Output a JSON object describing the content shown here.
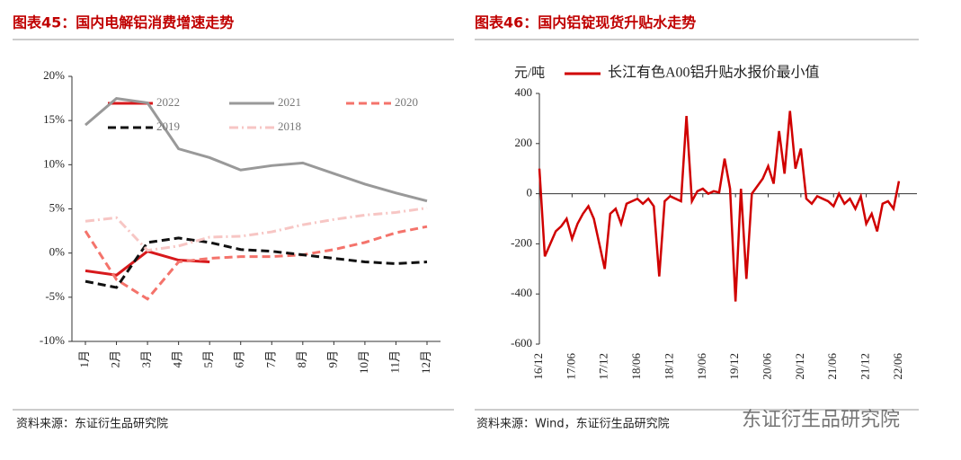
{
  "chart_data": [
    {
      "type": "line",
      "title": "图表45：国内电解铝消费增速走势",
      "source": "资料来源：东证衍生品研究院",
      "categories": [
        "1月",
        "2月",
        "3月",
        "4月",
        "5月",
        "6月",
        "7月",
        "8月",
        "9月",
        "10月",
        "11月",
        "12月"
      ],
      "ylim": [
        -10,
        20
      ],
      "yticks": [
        {
          "value": 20,
          "label": "20%"
        },
        {
          "value": 15,
          "label": "15%"
        },
        {
          "value": 10,
          "label": "10%"
        },
        {
          "value": 5,
          "label": "5%"
        },
        {
          "value": 0,
          "label": "0%"
        },
        {
          "value": -5,
          "label": "-5%"
        },
        {
          "value": -10,
          "label": "-10%"
        }
      ],
      "series": [
        {
          "name": "2022",
          "color": "#d7191c",
          "dash": "solid",
          "values": [
            -2,
            -2.5,
            0.2,
            -0.8,
            -1,
            null,
            null,
            null,
            null,
            null,
            null,
            null
          ]
        },
        {
          "name": "2021",
          "color": "#999999",
          "dash": "solid",
          "values": [
            14.5,
            17.5,
            17,
            11.8,
            10.8,
            9.4,
            9.9,
            10.2,
            9.0,
            7.8,
            6.8,
            5.9
          ]
        },
        {
          "name": "2020",
          "color": "#f4736b",
          "dash": "dashed",
          "values": [
            2.5,
            -3,
            -5.2,
            -1,
            -0.6,
            -0.4,
            -0.4,
            -0.2,
            0.4,
            1.2,
            2.3,
            3.0
          ]
        },
        {
          "name": "2019",
          "color": "#111111",
          "dash": "dashed",
          "values": [
            -3.2,
            -3.9,
            1.2,
            1.7,
            1.2,
            0.4,
            0.2,
            -0.2,
            -0.6,
            -1.0,
            -1.2,
            -1.0
          ]
        },
        {
          "name": "2018",
          "color": "#f7c6c4",
          "dash": "dashdot",
          "values": [
            3.6,
            4.0,
            0.3,
            0.8,
            1.8,
            1.9,
            2.4,
            3.2,
            3.8,
            4.3,
            4.6,
            5.1
          ]
        }
      ]
    },
    {
      "type": "line",
      "title": "图表46：国内铝锭现货升贴水走势",
      "source": "资料来源：Wind，东证衍生品研究院",
      "ylabel": "元/吨",
      "categories": [
        "16/12",
        null,
        null,
        null,
        null,
        null,
        "17/06",
        null,
        null,
        null,
        null,
        null,
        "17/12",
        null,
        null,
        null,
        null,
        null,
        "18/06",
        null,
        null,
        null,
        null,
        null,
        "18/12",
        null,
        null,
        null,
        null,
        null,
        "19/06",
        null,
        null,
        null,
        null,
        null,
        "19/12",
        null,
        null,
        null,
        null,
        null,
        "20/06",
        null,
        null,
        null,
        null,
        null,
        "20/12",
        null,
        null,
        null,
        null,
        null,
        "21/06",
        null,
        null,
        null,
        null,
        null,
        "21/12",
        null,
        null,
        null,
        null,
        null,
        "22/06"
      ],
      "ylim": [
        -600,
        400
      ],
      "yticks": [
        400,
        200,
        0,
        -200,
        -400,
        -600
      ],
      "series": [
        {
          "name": "长江有色A00铝升贴水报价最小值",
          "color": "#d00000",
          "dash": "solid",
          "values": [
            100,
            -250,
            -200,
            -150,
            -130,
            -100,
            -180,
            -120,
            -80,
            -50,
            -100,
            -200,
            -300,
            -80,
            -60,
            -120,
            -40,
            -30,
            -20,
            -40,
            -20,
            -50,
            -330,
            -30,
            -10,
            -20,
            -30,
            310,
            -30,
            10,
            20,
            0,
            10,
            5,
            140,
            20,
            -430,
            20,
            -340,
            0,
            30,
            60,
            110,
            40,
            250,
            80,
            330,
            100,
            180,
            -20,
            -40,
            -10,
            -20,
            -30,
            -50,
            0,
            -40,
            -20,
            -60,
            -10,
            -120,
            -80,
            -150,
            -40,
            -30,
            -60,
            50
          ]
        }
      ]
    }
  ],
  "watermark": "东证衍生品研究院"
}
